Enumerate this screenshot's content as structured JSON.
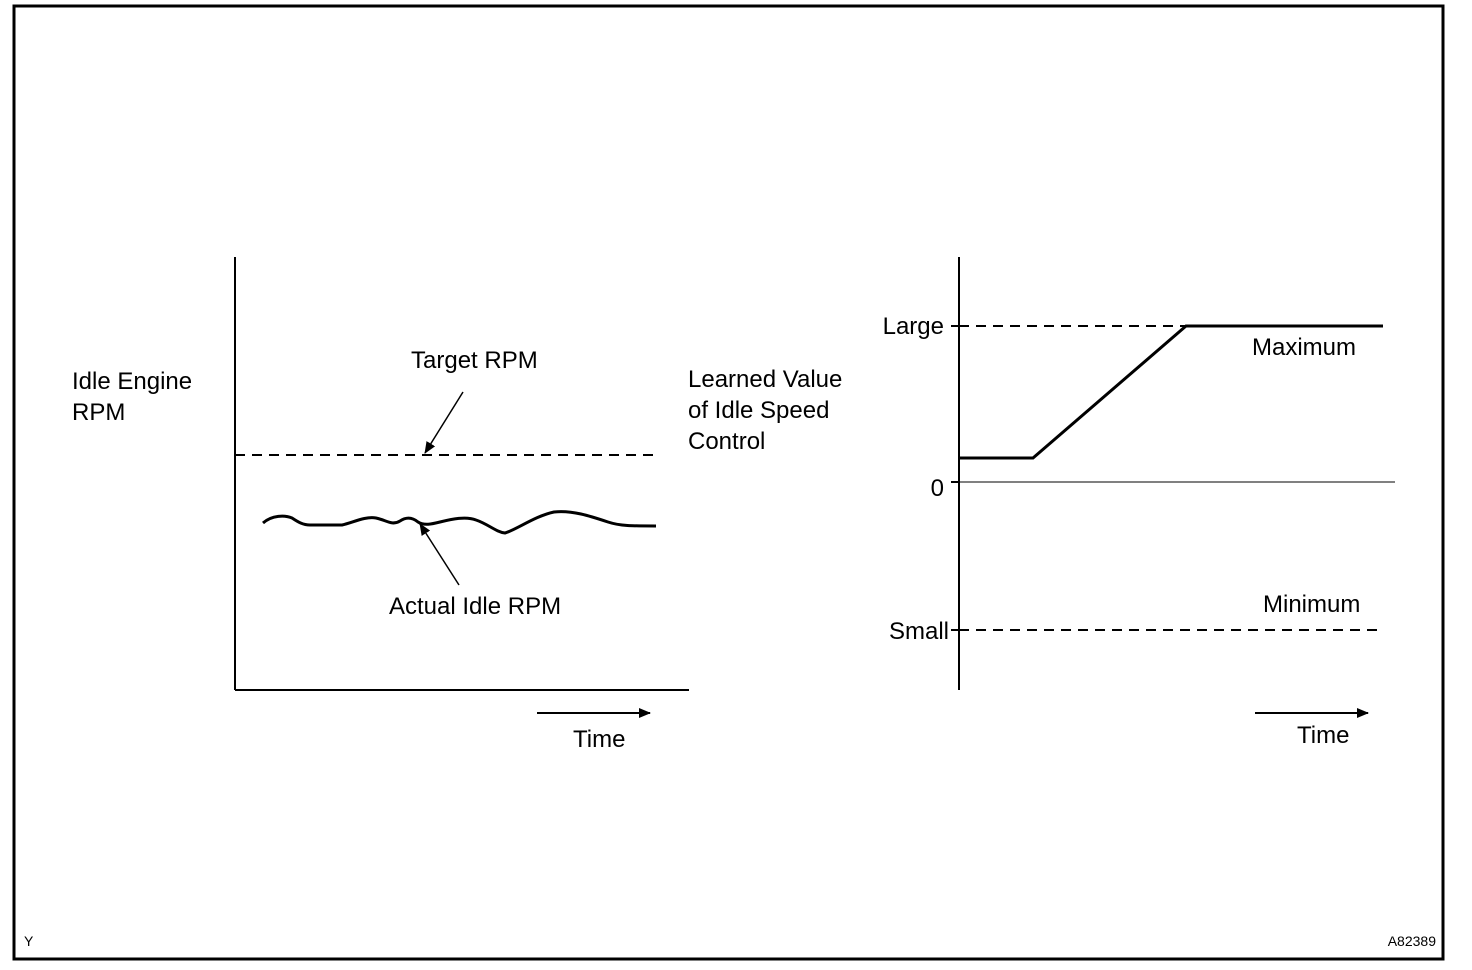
{
  "left_chart": {
    "y_label_line1": "Idle Engine",
    "y_label_line2": "RPM",
    "target_label": "Target RPM",
    "actual_label": "Actual Idle RPM",
    "x_label": "Time"
  },
  "right_chart": {
    "y_label_line1": "Learned Value",
    "y_label_line2": "of Idle Speed",
    "y_label_line3": "Control",
    "tick_large": "Large",
    "tick_zero": "0",
    "tick_small": "Small",
    "max_label": "Maximum",
    "min_label": "Minimum",
    "x_label": "Time"
  },
  "footer": {
    "corner_left": "Y",
    "figure_code": "A82389"
  }
}
